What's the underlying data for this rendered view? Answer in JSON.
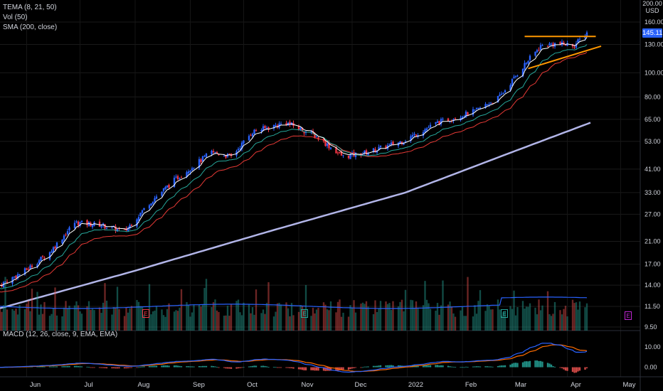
{
  "legend": {
    "tema": "TEMA (8, 21, 50)",
    "vol": "Vol (50)",
    "sma": "SMA (200, close)",
    "macd": "MACD (12, 26, close, 9, EMA, EMA)"
  },
  "price_axis": {
    "currency_top": "200.00",
    "currency_unit": "USD",
    "last_price": "145.11",
    "ticks": [
      "160.00",
      "130.00",
      "100.00",
      "80.00",
      "65.00",
      "53.00",
      "41.00",
      "33.00",
      "27.00",
      "21.00",
      "17.00",
      "14.00",
      "11.50",
      "9.50"
    ]
  },
  "macd_axis": {
    "ticks": [
      "10.00",
      "0.00"
    ]
  },
  "time_axis": {
    "labels": [
      "Jun",
      "Jul",
      "Aug",
      "Sep",
      "Oct",
      "Nov",
      "Dec",
      "2022",
      "Feb",
      "Mar",
      "Apr",
      "May"
    ]
  },
  "earnings_marker": "E",
  "colors": {
    "background": "#000000",
    "up": "#2962ff",
    "down": "#f23645",
    "tema_fast": "#ffffff",
    "tema_mid": "#26a69a",
    "tema_slow": "#e53935",
    "sma200": "#b2b5e8",
    "trendline": "#ff9800",
    "macd_line": "#2962ff",
    "signal_line": "#ff6d00",
    "hist_pos": "#26a69a",
    "hist_neg": "#ef5350",
    "volume_ma": "#2962ff"
  },
  "chart_data": {
    "type": "candlestick",
    "x_range": [
      "2021-05-17",
      "2022-05-12"
    ],
    "y_scale": "log",
    "ylim": [
      8.7,
      200
    ],
    "price_anchors": [
      {
        "date": "2021-05-17",
        "close": 14
      },
      {
        "date": "2021-05-31",
        "close": 16
      },
      {
        "date": "2021-06-14",
        "close": 19
      },
      {
        "date": "2021-06-28",
        "close": 25
      },
      {
        "date": "2021-07-12",
        "close": 24.5
      },
      {
        "date": "2021-07-26",
        "close": 23
      },
      {
        "date": "2021-08-09",
        "close": 30
      },
      {
        "date": "2021-08-23",
        "close": 37
      },
      {
        "date": "2021-09-13",
        "close": 48
      },
      {
        "date": "2021-09-24",
        "close": 46
      },
      {
        "date": "2021-10-06",
        "close": 58
      },
      {
        "date": "2021-10-25",
        "close": 63
      },
      {
        "date": "2021-11-10",
        "close": 56
      },
      {
        "date": "2021-11-26",
        "close": 46
      },
      {
        "date": "2021-12-10",
        "close": 48
      },
      {
        "date": "2021-12-29",
        "close": 53
      },
      {
        "date": "2022-01-18",
        "close": 63
      },
      {
        "date": "2022-02-08",
        "close": 70
      },
      {
        "date": "2022-02-22",
        "close": 80
      },
      {
        "date": "2022-03-08",
        "close": 108
      },
      {
        "date": "2022-03-17",
        "close": 128
      },
      {
        "date": "2022-03-25",
        "close": 131
      },
      {
        "date": "2022-04-05",
        "close": 129
      },
      {
        "date": "2022-04-12",
        "close": 145.11
      }
    ],
    "sma200_anchors": [
      {
        "date": "2021-05-17",
        "value": 11.3
      },
      {
        "date": "2021-08-01",
        "value": 16
      },
      {
        "date": "2021-10-15",
        "value": 23
      },
      {
        "date": "2021-12-31",
        "value": 33
      },
      {
        "date": "2022-03-01",
        "value": 48
      },
      {
        "date": "2022-04-14",
        "value": 63
      }
    ],
    "resistance": {
      "start": "2022-03-08",
      "end": "2022-04-17",
      "price": 140
    },
    "support": {
      "start": "2022-03-10",
      "end": "2022-04-20",
      "from": 104,
      "to": 128
    },
    "earnings_dates": [
      "2021-08-24",
      "2021-11-16",
      "2022-03-10",
      "2022-05-12"
    ],
    "macd_range": [
      -4,
      17
    ]
  }
}
